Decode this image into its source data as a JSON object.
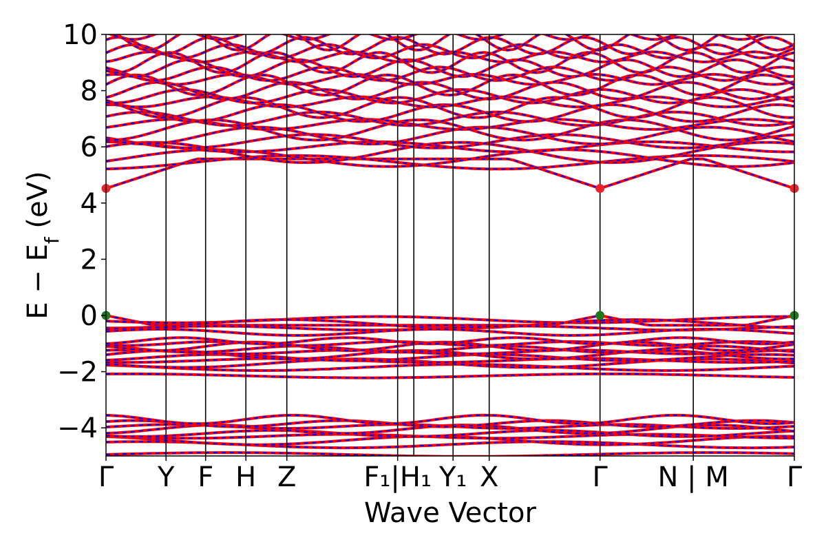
{
  "chart_data": {
    "type": "line",
    "ylabel": "E − E",
    "ylabel_sub": "f",
    "ylabel_unit": " (eV)",
    "xlabel": "Wave Vector",
    "ylim": [
      -5,
      10
    ],
    "yticks": [
      {
        "value": 10,
        "label": "10"
      },
      {
        "value": 8,
        "label": "8"
      },
      {
        "value": 6,
        "label": "6"
      },
      {
        "value": 4,
        "label": "4"
      },
      {
        "value": 2,
        "label": "2"
      },
      {
        "value": 0,
        "label": "0"
      },
      {
        "value": -2,
        "label": "−2"
      },
      {
        "value": -4,
        "label": "−4"
      }
    ],
    "kpoints": [
      {
        "label": "Γ",
        "k": 0.0
      },
      {
        "label": "Y",
        "k": 0.0872
      },
      {
        "label": "F",
        "k": 0.1447
      },
      {
        "label": "H",
        "k": 0.2032
      },
      {
        "label": "Z",
        "k": 0.2627
      },
      {
        "label": "F₁|H₁",
        "k": 0.4237,
        "k_end": 0.4472
      },
      {
        "label": "Y₁",
        "k": 0.5042
      },
      {
        "label": "X",
        "k": 0.5567
      },
      {
        "label": "Γ",
        "k": 0.7177
      },
      {
        "label": "N|M",
        "k": 0.8532
      },
      {
        "label": "Γ",
        "k": 1.0
      }
    ],
    "tick_labels": [
      {
        "text": "Γ",
        "k": 0.0
      },
      {
        "text": "Y",
        "k": 0.0872
      },
      {
        "text": "F",
        "k": 0.1447
      },
      {
        "text": "H",
        "k": 0.2032
      },
      {
        "text": "Z",
        "k": 0.2627
      },
      {
        "text": "F₁|H₁",
        "k": 0.4237
      },
      {
        "text": "Y₁",
        "k": 0.5042
      },
      {
        "text": "X",
        "k": 0.5567
      },
      {
        "text": "Γ",
        "k": 0.7177
      },
      {
        "text": "N | M",
        "k": 0.8532
      },
      {
        "text": "Γ",
        "k": 1.0
      }
    ],
    "band_groups": [
      {
        "name": "deep valence",
        "energies": [
          -4.95,
          -4.6,
          -4.45,
          -4.3,
          -4.2,
          -4.05,
          -3.95,
          -3.85,
          -3.7
        ]
      },
      {
        "name": "upper valence manifold",
        "energies": [
          -2.15,
          -1.85,
          -1.7,
          -1.6,
          -1.5,
          -1.4,
          -1.3,
          -1.2,
          -1.1,
          -1.0,
          -0.9
        ]
      },
      {
        "name": "valence top",
        "energies": [
          0.0,
          -0.15,
          -0.3,
          -0.45,
          -0.6
        ]
      },
      {
        "name": "conduction",
        "energies": [
          4.52,
          5.45,
          5.6,
          5.8,
          6.0,
          6.2,
          6.4,
          6.6,
          6.8,
          7.0,
          7.2,
          7.4,
          7.6,
          7.8,
          8.0,
          8.2,
          8.4,
          8.6,
          8.8,
          9.0,
          9.2,
          9.4,
          9.6,
          9.8,
          10.0
        ]
      }
    ],
    "extrema": [
      {
        "type": "CBM",
        "energy": 4.52,
        "k": [
          0.0,
          0.7177,
          1.0
        ],
        "color": "#e8232a"
      },
      {
        "type": "VBM",
        "energy": 0.0,
        "k": [
          0.0,
          0.7177,
          1.0
        ],
        "color": "#1b7a1b"
      }
    ],
    "colors": {
      "band_primary": "#ff0000",
      "band_secondary": "#0000ff",
      "kline": "#000000"
    },
    "grid": false,
    "legend": "none"
  }
}
